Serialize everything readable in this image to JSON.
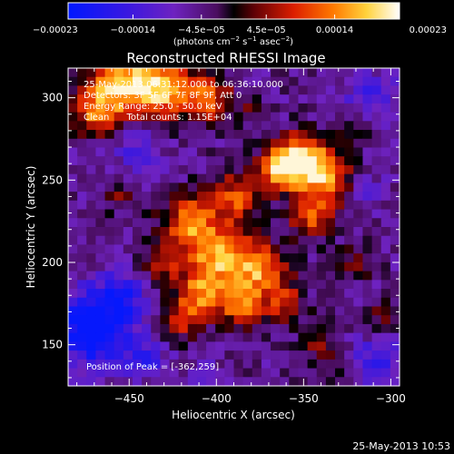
{
  "chart_data": {
    "type": "heatmap",
    "title": "Reconstructed RHESSI Image",
    "xlabel": "Heliocentric X (arcsec)",
    "ylabel": "Heliocentric Y (arcsec)",
    "xlim": [
      -485,
      -295
    ],
    "ylim": [
      125,
      318
    ],
    "xticks": [
      -450,
      -400,
      -350,
      -300
    ],
    "xtick_labels": [
      "−450",
      "−400",
      "−350",
      "−300"
    ],
    "yticks": [
      150,
      200,
      250,
      300
    ],
    "ytick_labels": [
      "150",
      "200",
      "250",
      "300"
    ],
    "colorbar": {
      "range": [
        -0.00023,
        0.00023
      ],
      "ticks": [
        -0.00023,
        -0.00014,
        -4.5e-05,
        4.5e-05,
        0.00014,
        0.00023
      ],
      "tick_labels": [
        "−0.00023",
        "−0.00014",
        "−4.5e−05",
        "4.5e−05",
        "0.00014",
        "0.00023"
      ],
      "label_main": "(photons cm",
      "label_sup1": "−2",
      "label_mid1": " s",
      "label_sup2": "−1",
      "label_mid2": " asec",
      "label_sup3": "−2",
      "label_end": ")"
    },
    "annotations": {
      "line1": "25-May-2013 06:31:12.000 to 06:36:10.000",
      "line2": "Detectors: 3F 5F 6F 7F 8F 9F, Att 0",
      "line3": "Energy Range: 25.0 - 50.0 keV",
      "line4": "Clean      Total counts: 1.15E+04",
      "peak": "Position of Peak = [-362,259]"
    },
    "peak": [
      -362,
      259
    ],
    "grid": false,
    "blobs": [
      [
        -455,
        308,
        14,
        1.0
      ],
      [
        -430,
        305,
        12,
        0.9
      ],
      [
        -405,
        300,
        10,
        0.7
      ],
      [
        -470,
        290,
        9,
        0.6
      ],
      [
        -350,
        262,
        11,
        1.0
      ],
      [
        -362,
        258,
        9,
        0.9
      ],
      [
        -335,
        250,
        10,
        0.7
      ],
      [
        -345,
        228,
        9,
        0.7
      ],
      [
        -388,
        240,
        10,
        0.7
      ],
      [
        -415,
        225,
        11,
        0.8
      ],
      [
        -398,
        205,
        12,
        0.9
      ],
      [
        -375,
        195,
        11,
        0.85
      ],
      [
        -408,
        182,
        10,
        0.8
      ],
      [
        -385,
        172,
        9,
        0.7
      ],
      [
        -420,
        165,
        8,
        0.6
      ],
      [
        -430,
        200,
        8,
        0.5
      ],
      [
        -360,
        175,
        8,
        0.5
      ],
      [
        -455,
        240,
        7,
        0.3
      ],
      [
        -320,
        200,
        7,
        0.35
      ],
      [
        -305,
        168,
        6,
        0.35
      ],
      [
        -322,
        280,
        7,
        0.35
      ],
      [
        -340,
        150,
        7,
        0.4
      ],
      [
        -330,
        135,
        6,
        0.3
      ],
      [
        -380,
        292,
        6,
        0.25
      ],
      [
        -470,
        160,
        16,
        -0.9
      ],
      [
        -455,
        180,
        9,
        -0.45
      ],
      [
        -445,
        270,
        10,
        -0.35
      ],
      [
        -310,
        300,
        12,
        -0.35
      ],
      [
        -307,
        140,
        10,
        -0.45
      ],
      [
        -315,
        245,
        7,
        -0.3
      ],
      [
        -440,
        140,
        8,
        -0.35
      ],
      [
        -405,
        130,
        7,
        -0.2
      ]
    ]
  },
  "footer": {
    "timestamp": "25-May-2013 10:53"
  }
}
